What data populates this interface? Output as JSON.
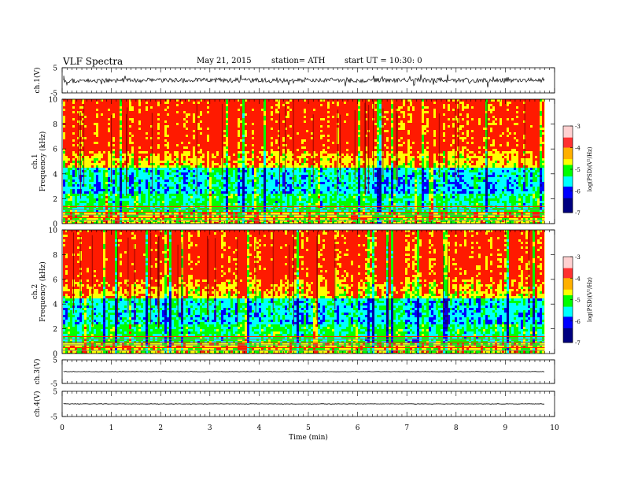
{
  "header": {
    "title": "VLF  Spectra",
    "date": "May 21, 2015",
    "station": "station= ATH",
    "start": "start  UT =   10:30: 0"
  },
  "chart_data": [
    {
      "id": "ch1-waveform",
      "type": "line",
      "ylabel": "ch.1(V)",
      "ylim": [
        -5,
        5
      ],
      "yticks": [
        "5",
        "-5"
      ],
      "xlim": [
        0,
        10
      ],
      "description_series": "noisy waveform around ~0V, amplitude ±2V"
    },
    {
      "id": "ch1-spectrogram",
      "type": "heatmap",
      "ylabel": "ch.1\nFrequency  (kHz)",
      "ylabel_lines": [
        "ch.1",
        "Frequency  (kHz)"
      ],
      "ylim": [
        0,
        10
      ],
      "yticks": [
        "0",
        "2",
        "4",
        "6",
        "8",
        "10"
      ],
      "xlim": [
        0,
        10
      ],
      "data_end_min": 9.8,
      "colorbar": {
        "label": "log(PSD)(V²/Hz)",
        "range": [
          -7,
          -3
        ],
        "ticks": [
          "-3",
          "-4",
          "-5",
          "-6",
          "-7"
        ]
      }
    },
    {
      "id": "ch2-spectrogram",
      "type": "heatmap",
      "ylabel_lines": [
        "ch.2",
        "Frequency  (kHz)"
      ],
      "ylim": [
        0,
        10
      ],
      "yticks": [
        "0",
        "2",
        "4",
        "6",
        "8",
        "10"
      ],
      "xlim": [
        0,
        10
      ],
      "data_end_min": 9.8,
      "colorbar": {
        "label": "log(PSD)(V²/Hz)",
        "range": [
          -7,
          -3
        ],
        "ticks": [
          "-3",
          "-4",
          "-5",
          "-6",
          "-7"
        ]
      }
    },
    {
      "id": "ch3-waveform",
      "type": "line",
      "ylabel": "ch.3(V)",
      "ylim": [
        -5,
        5
      ],
      "yticks": [
        "5",
        "-5"
      ],
      "xlim": [
        0,
        10
      ]
    },
    {
      "id": "ch4-waveform",
      "type": "line",
      "ylabel": "ch.4(V)",
      "ylim": [
        -5,
        5
      ],
      "yticks": [
        "5",
        "-5"
      ],
      "xlim": [
        0,
        10
      ]
    }
  ],
  "xaxis": {
    "label": "Time  (min)",
    "ticks": [
      "0",
      "1",
      "2",
      "3",
      "4",
      "5",
      "6",
      "7",
      "8",
      "9",
      "10"
    ]
  },
  "colors": {
    "red": "#ff1a00",
    "yellow": "#ffff00",
    "green": "#00ff00",
    "cyan": "#00ffff",
    "blue": "#0000ff",
    "black": "#000000"
  }
}
